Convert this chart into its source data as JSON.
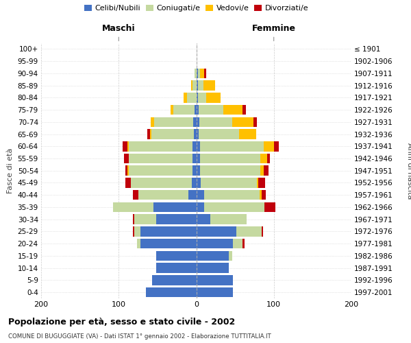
{
  "age_groups": [
    "0-4",
    "5-9",
    "10-14",
    "15-19",
    "20-24",
    "25-29",
    "30-34",
    "35-39",
    "40-44",
    "45-49",
    "50-54",
    "55-59",
    "60-64",
    "65-69",
    "70-74",
    "75-79",
    "80-84",
    "85-89",
    "90-94",
    "95-99",
    "100+"
  ],
  "birth_years": [
    "1997-2001",
    "1992-1996",
    "1987-1991",
    "1982-1986",
    "1977-1981",
    "1972-1976",
    "1967-1971",
    "1962-1966",
    "1957-1961",
    "1952-1956",
    "1947-1951",
    "1942-1946",
    "1937-1941",
    "1932-1936",
    "1927-1931",
    "1922-1926",
    "1917-1921",
    "1912-1916",
    "1907-1911",
    "1902-1906",
    "≤ 1901"
  ],
  "male_celibi": [
    65,
    57,
    52,
    52,
    72,
    72,
    52,
    55,
    10,
    6,
    5,
    5,
    5,
    3,
    4,
    2,
    0,
    0,
    0,
    0,
    0
  ],
  "male_coniugati": [
    0,
    0,
    0,
    0,
    4,
    8,
    28,
    52,
    65,
    78,
    82,
    82,
    82,
    55,
    50,
    28,
    12,
    5,
    2,
    0,
    0
  ],
  "male_vedovi": [
    0,
    0,
    0,
    0,
    0,
    0,
    0,
    0,
    0,
    0,
    2,
    0,
    2,
    2,
    5,
    3,
    4,
    2,
    0,
    0,
    0
  ],
  "male_divorziati": [
    0,
    0,
    0,
    0,
    0,
    2,
    2,
    0,
    7,
    7,
    2,
    6,
    6,
    3,
    0,
    0,
    0,
    0,
    0,
    0,
    0
  ],
  "female_nubili": [
    47,
    47,
    42,
    42,
    47,
    52,
    18,
    10,
    10,
    6,
    5,
    5,
    5,
    3,
    4,
    3,
    2,
    2,
    2,
    0,
    0
  ],
  "female_coniugate": [
    0,
    0,
    0,
    4,
    13,
    32,
    47,
    78,
    72,
    72,
    78,
    78,
    82,
    52,
    42,
    32,
    11,
    7,
    3,
    0,
    0
  ],
  "female_vedove": [
    0,
    0,
    0,
    0,
    0,
    0,
    0,
    0,
    2,
    2,
    4,
    8,
    13,
    22,
    28,
    25,
    18,
    15,
    5,
    0,
    0
  ],
  "female_divorziate": [
    0,
    0,
    0,
    0,
    2,
    2,
    0,
    14,
    6,
    9,
    6,
    4,
    6,
    0,
    4,
    4,
    0,
    0,
    3,
    0,
    0
  ],
  "colors_celibi": "#4472c4",
  "colors_coniugati": "#c5d9a0",
  "colors_vedovi": "#ffc000",
  "colors_divorziati": "#c0000b",
  "xlim": [
    -200,
    200
  ],
  "xticks": [
    -200,
    -100,
    0,
    100,
    200
  ],
  "xticklabels": [
    "200",
    "100",
    "0",
    "100",
    "200"
  ],
  "title": "Popolazione per età, sesso e stato civile - 2002",
  "subtitle": "COMUNE DI BUGUGGIATE (VA) - Dati ISTAT 1° gennaio 2002 - Elaborazione TUTTITALIA.IT",
  "ylabel_left": "Fasce di età",
  "ylabel_right": "Anni di nascita",
  "maschi_label": "Maschi",
  "femmine_label": "Femmine",
  "legend_labels": [
    "Celibi/Nubili",
    "Coniugati/e",
    "Vedovi/e",
    "Divorziati/e"
  ],
  "bg_color": "#ffffff",
  "grid_color": "#cccccc"
}
